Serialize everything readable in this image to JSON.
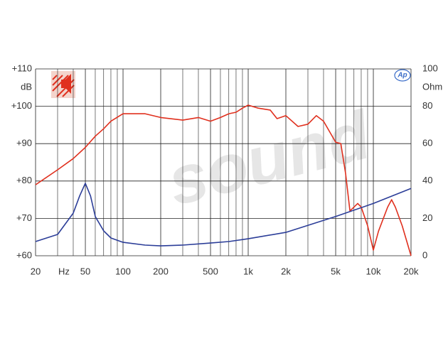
{
  "chart_data": {
    "type": "line",
    "xscale": "log",
    "grid": true,
    "watermark": "sound",
    "x_unit": "Hz",
    "y_unit": "dB",
    "y2_unit": "Ohm",
    "xlim": [
      20,
      20000
    ],
    "xticks": [
      20,
      50,
      100,
      200,
      500,
      {
        "value": 1000,
        "label": "1k"
      },
      {
        "value": 2000,
        "label": "2k"
      },
      {
        "value": 5000,
        "label": "5k"
      },
      {
        "value": 10000,
        "label": "10k"
      },
      {
        "value": 20000,
        "label": "20k"
      }
    ],
    "xminor": [
      30,
      40,
      60,
      70,
      80,
      90,
      300,
      400,
      600,
      700,
      800,
      900,
      3000,
      4000,
      6000,
      7000,
      8000,
      9000
    ],
    "ylim": [
      60,
      110
    ],
    "yticks": [
      {
        "value": 60,
        "label": "+60"
      },
      {
        "value": 70,
        "label": "+70"
      },
      {
        "value": 80,
        "label": "+80"
      },
      {
        "value": 90,
        "label": "+90"
      },
      {
        "value": 100,
        "label": "+100"
      },
      {
        "value": 110,
        "label": "+110"
      }
    ],
    "y2lim": [
      0,
      100
    ],
    "y2ticks": [
      0,
      20,
      40,
      60,
      80,
      100
    ],
    "series": [
      {
        "color": "#e0301e",
        "x": [
          20,
          30,
          40,
          50,
          60,
          70,
          80,
          100,
          120,
          150,
          200,
          300,
          400,
          500,
          600,
          700,
          800,
          900,
          1000,
          1200,
          1500,
          1700,
          2000,
          2500,
          3000,
          3500,
          4000,
          5000,
          5500,
          6000,
          6500,
          7500,
          8000,
          9000,
          10000,
          11000,
          13000,
          14000,
          15000,
          17000,
          20000
        ],
        "values": [
          79,
          83,
          86,
          89,
          92,
          94,
          96,
          98,
          98,
          98,
          97,
          96.3,
          97,
          96,
          97,
          98,
          98.4,
          99.5,
          100.3,
          99.5,
          99,
          96.7,
          97.5,
          94.6,
          95.2,
          97.5,
          96,
          90.4,
          90,
          82,
          72,
          74,
          73,
          68,
          61.5,
          66.6,
          73,
          75,
          73,
          68,
          60
        ]
      },
      {
        "color": "#2b3d98",
        "axis": "y2",
        "x": [
          20,
          30,
          40,
          45,
          50,
          55,
          60,
          70,
          80,
          100,
          150,
          200,
          300,
          500,
          700,
          1000,
          2000,
          5000,
          10000,
          20000
        ],
        "values": [
          7.6,
          11.4,
          22.8,
          32,
          38.8,
          32,
          21,
          13.3,
          9.5,
          7.2,
          5.7,
          5.3,
          5.7,
          6.8,
          7.6,
          9.1,
          12.5,
          21,
          28,
          36
        ]
      }
    ]
  }
}
